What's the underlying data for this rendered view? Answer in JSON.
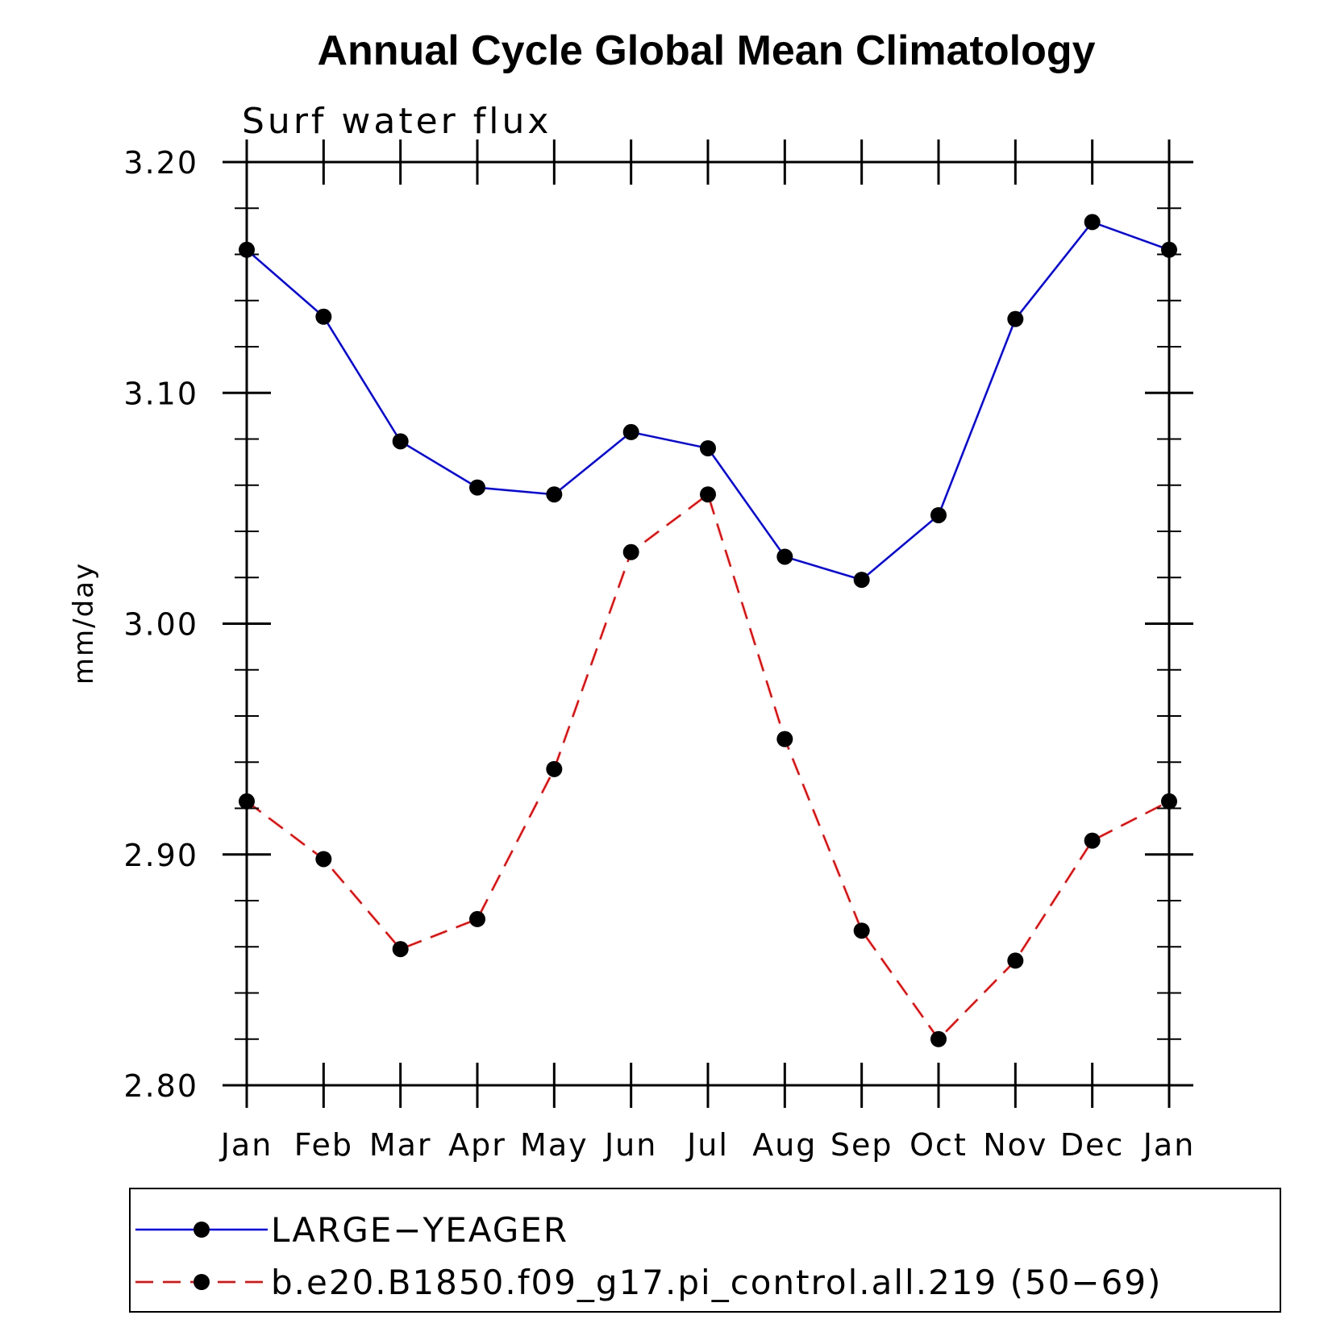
{
  "chart_data": {
    "type": "line",
    "title": "Annual Cycle Global Mean Climatology",
    "subtitle": "Surf water flux",
    "xlabel": "",
    "ylabel": "mm/day",
    "categories": [
      "Jan",
      "Feb",
      "Mar",
      "Apr",
      "May",
      "Jun",
      "Jul",
      "Aug",
      "Sep",
      "Oct",
      "Nov",
      "Dec",
      "Jan"
    ],
    "ylim": [
      2.8,
      3.2
    ],
    "yticks": [
      "2.80",
      "2.90",
      "3.00",
      "3.10",
      "3.20"
    ],
    "grid": false,
    "legend_position": "bottom",
    "series": [
      {
        "name": "LARGE−YEAGER",
        "color": "#0000ff",
        "line_style": "solid",
        "marker": "filled-circle",
        "values": [
          3.162,
          3.133,
          3.079,
          3.059,
          3.056,
          3.083,
          3.076,
          3.029,
          3.019,
          3.047,
          3.132,
          3.174,
          3.162
        ]
      },
      {
        "name": "b.e20.B1850.f09_g17.pi_control.all.219 (50−69)",
        "color": "#ff0000",
        "line_style": "dashed",
        "marker": "filled-circle",
        "values": [
          2.923,
          2.898,
          2.859,
          2.872,
          2.937,
          3.031,
          3.056,
          2.95,
          2.867,
          2.82,
          2.854,
          2.906,
          2.923
        ]
      }
    ]
  }
}
